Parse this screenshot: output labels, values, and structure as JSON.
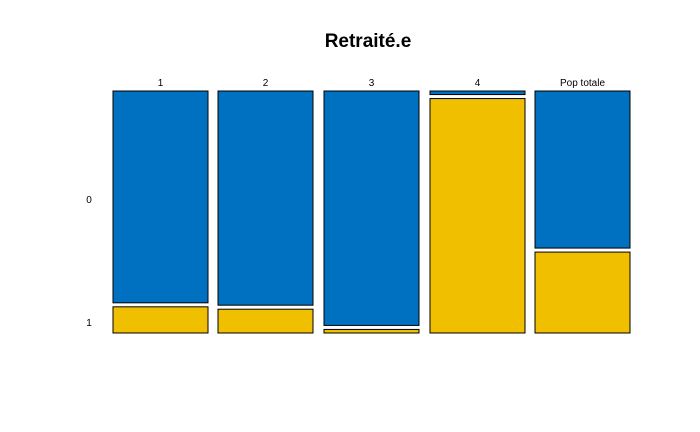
{
  "chart_data": {
    "type": "mosaic",
    "title": "Retraité.e",
    "categories": [
      "1",
      "2",
      "3",
      "4",
      "Pop totale"
    ],
    "row_labels": [
      "0",
      "1"
    ],
    "series": [
      {
        "name": "0",
        "color": "#0070C0",
        "values": [
          0.89,
          0.9,
          0.985,
          0.015,
          0.66
        ]
      },
      {
        "name": "1",
        "color": "#F0C000",
        "values": [
          0.11,
          0.1,
          0.015,
          0.985,
          0.34
        ]
      }
    ]
  }
}
